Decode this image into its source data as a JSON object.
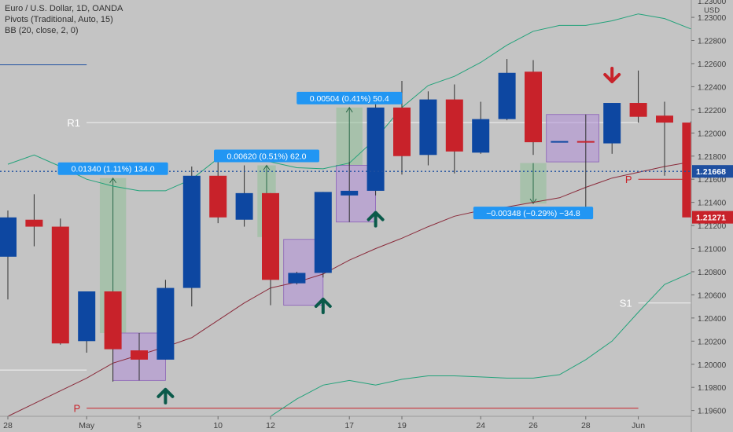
{
  "legend": {
    "symbol": "Euro / U.S. Dollar, 1D, OANDA",
    "pivots": "Pivots (Traditional, Auto, 15)",
    "bb": "BB (20, close, 2, 0)"
  },
  "colors": {
    "background": "#c4c4c4",
    "up": "#0d47a1",
    "down": "#c8222a",
    "bb_band": "#22a27a",
    "bb_basis": "#8a2a3a",
    "pivot_line": "#f2f2f2",
    "pivot_p": "#c8222a",
    "price_line": "#1e4fa0",
    "label_blue": "#2196f3",
    "arrow_up": "#0a5a4a",
    "arrow_down": "#c8222a",
    "purple_box": "#b38fd9",
    "green_box": "#8fbf98"
  },
  "chart_data": {
    "type": "candlestick",
    "symbol": "Euro / U.S. Dollar",
    "timeframe": "1D",
    "exchange": "OANDA",
    "y_axis": {
      "range": [
        1.1955,
        1.2315
      ],
      "ticks": [
        "1.23000",
        "1.22800",
        "1.22600",
        "1.22400",
        "1.22200",
        "1.22000",
        "1.21800",
        "1.21600",
        "1.21400",
        "1.21200",
        "1.21000",
        "1.20800",
        "1.20600",
        "1.20400",
        "1.20200",
        "1.20000",
        "1.19800",
        "1.19600"
      ],
      "unit": "USD"
    },
    "x_axis": {
      "ticks": [
        {
          "label": "28",
          "index": 0
        },
        {
          "label": "May",
          "index": 3
        },
        {
          "label": "5",
          "index": 5
        },
        {
          "label": "10",
          "index": 8
        },
        {
          "label": "12",
          "index": 10
        },
        {
          "label": "17",
          "index": 13
        },
        {
          "label": "19",
          "index": 15
        },
        {
          "label": "24",
          "index": 18
        },
        {
          "label": "26",
          "index": 20
        },
        {
          "label": "28",
          "index": 22
        },
        {
          "label": "Jun",
          "index": 24
        }
      ]
    },
    "candles": [
      {
        "o": 1.2093,
        "h": 1.2133,
        "l": 1.2056,
        "c": 1.2127
      },
      {
        "o": 1.2125,
        "h": 1.2147,
        "l": 1.2102,
        "c": 1.2119
      },
      {
        "o": 1.2119,
        "h": 1.2126,
        "l": 1.2017,
        "c": 1.2018
      },
      {
        "o": 1.202,
        "h": 1.2063,
        "l": 1.201,
        "c": 1.2063
      },
      {
        "o": 1.2063,
        "h": 1.2063,
        "l": 1.1985,
        "c": 1.2013
      },
      {
        "o": 1.2012,
        "h": 1.2027,
        "l": 1.1986,
        "c": 1.2004
      },
      {
        "o": 1.2004,
        "h": 1.2073,
        "l": 1.2004,
        "c": 1.2066
      },
      {
        "o": 1.2066,
        "h": 1.2171,
        "l": 1.205,
        "c": 1.2163
      },
      {
        "o": 1.2163,
        "h": 1.2175,
        "l": 1.2122,
        "c": 1.2127
      },
      {
        "o": 1.2125,
        "h": 1.2172,
        "l": 1.2119,
        "c": 1.2148
      },
      {
        "o": 1.2148,
        "h": 1.2148,
        "l": 1.2051,
        "c": 1.2073
      },
      {
        "o": 1.207,
        "h": 1.208,
        "l": 1.2069,
        "c": 1.2079
      },
      {
        "o": 1.2079,
        "h": 1.2149,
        "l": 1.2075,
        "c": 1.2149
      },
      {
        "o": 1.2146,
        "h": 1.2175,
        "l": 1.2123,
        "c": 1.215
      },
      {
        "o": 1.215,
        "h": 1.2232,
        "l": 1.2146,
        "c": 1.2222
      },
      {
        "o": 1.2222,
        "h": 1.2245,
        "l": 1.2164,
        "c": 1.218
      },
      {
        "o": 1.2181,
        "h": 1.2236,
        "l": 1.2172,
        "c": 1.2229
      },
      {
        "o": 1.2229,
        "h": 1.2242,
        "l": 1.2165,
        "c": 1.2184
      },
      {
        "o": 1.2183,
        "h": 1.2227,
        "l": 1.2182,
        "c": 1.2212
      },
      {
        "o": 1.2212,
        "h": 1.2264,
        "l": 1.2211,
        "c": 1.2252
      },
      {
        "o": 1.2253,
        "h": 1.2263,
        "l": 1.2181,
        "c": 1.2192
      },
      {
        "o": 1.2192,
        "h": 1.2192,
        "l": 1.2192,
        "c": 1.2193
      },
      {
        "o": 1.2193,
        "h": 1.2216,
        "l": 1.2132,
        "c": 1.2192
      },
      {
        "o": 1.2191,
        "h": 1.2226,
        "l": 1.2182,
        "c": 1.2226
      },
      {
        "o": 1.2226,
        "h": 1.2254,
        "l": 1.2209,
        "c": 1.2214
      },
      {
        "o": 1.2215,
        "h": 1.2227,
        "l": 1.2163,
        "c": 1.2209
      },
      {
        "o": 1.2209,
        "h": 1.221,
        "l": 1.2127,
        "c": 1.2127
      }
    ],
    "bollinger": {
      "upper": [
        1.2173,
        1.2181,
        1.2171,
        1.216,
        1.2154,
        1.215,
        1.215,
        1.216,
        1.2178,
        1.2176,
        1.2175,
        1.217,
        1.2169,
        1.2174,
        1.2195,
        1.2222,
        1.2241,
        1.2249,
        1.2261,
        1.2276,
        1.2288,
        1.2293,
        1.2293,
        1.2297,
        1.2303,
        1.2299,
        1.229
      ],
      "basis": [
        1.1955,
        1.1966,
        1.1977,
        1.1988,
        1.2001,
        1.2008,
        1.2015,
        1.2023,
        1.2038,
        1.2053,
        1.2066,
        1.2071,
        1.2078,
        1.209,
        1.21,
        1.2109,
        1.2119,
        1.2128,
        1.2133,
        1.2136,
        1.214,
        1.2144,
        1.2153,
        1.2161,
        1.2166,
        1.2171,
        1.2175
      ],
      "lower": [
        null,
        null,
        null,
        null,
        null,
        null,
        null,
        null,
        null,
        null,
        1.1955,
        1.197,
        1.1982,
        1.1986,
        1.1982,
        1.1987,
        1.199,
        1.199,
        1.1989,
        1.1988,
        1.1988,
        1.1991,
        1.2004,
        1.202,
        1.2045,
        1.2069,
        1.2079
      ]
    },
    "pivots": [
      {
        "label": "R1",
        "value": 1.2209,
        "from": 0,
        "to": 24
      },
      {
        "label": "P",
        "value": 1.1962,
        "from": 3,
        "to": 24
      },
      {
        "label": "",
        "value": 1.2259,
        "from": -1,
        "to": 3
      },
      {
        "label": "",
        "value": 1.1995,
        "from": -1,
        "to": 3
      },
      {
        "label": "P",
        "value": 1.216,
        "from": 24,
        "to": 26
      },
      {
        "label": "S1",
        "value": 1.2053,
        "from": 24,
        "to": 26
      }
    ],
    "current_price": {
      "value": 1.21668,
      "label": "1.21668"
    },
    "last_price": {
      "value": 1.21271,
      "label": "1.21271"
    },
    "measurements": [
      {
        "text": "0.01340 (1.11%) 134.0",
        "from": 3.5,
        "to": 4.5,
        "low": 1.2027,
        "high": 1.2161,
        "up": true
      },
      {
        "text": "0.00620 (0.51%) 62.0",
        "from": 9.5,
        "to": 10.2,
        "low": 1.211,
        "high": 1.2172,
        "up": true
      },
      {
        "text": "0.00504 (0.41%) 50.4",
        "from": 12.5,
        "to": 13.5,
        "low": 1.2172,
        "high": 1.2222,
        "up": true
      },
      {
        "text": "−0.00348 (−0.29%) −34.8",
        "from": 19.5,
        "to": 20.5,
        "low": 1.2139,
        "high": 1.2174,
        "up": false
      }
    ],
    "boxes": [
      {
        "from": 4.0,
        "to": 6.0,
        "low": 1.1986,
        "high": 1.2027
      },
      {
        "from": 10.5,
        "to": 12.0,
        "low": 1.2051,
        "high": 1.2108
      },
      {
        "from": 12.5,
        "to": 14.0,
        "low": 1.2123,
        "high": 1.2172
      },
      {
        "from": 20.5,
        "to": 22.5,
        "low": 1.2175,
        "high": 1.2216
      }
    ],
    "signals": [
      {
        "index": 6,
        "type": "up",
        "price": 1.1985
      },
      {
        "index": 12,
        "type": "up",
        "price": 1.2063
      },
      {
        "index": 14,
        "type": "up",
        "price": 1.2138
      },
      {
        "index": 23,
        "type": "down",
        "price": 1.2241
      }
    ]
  }
}
